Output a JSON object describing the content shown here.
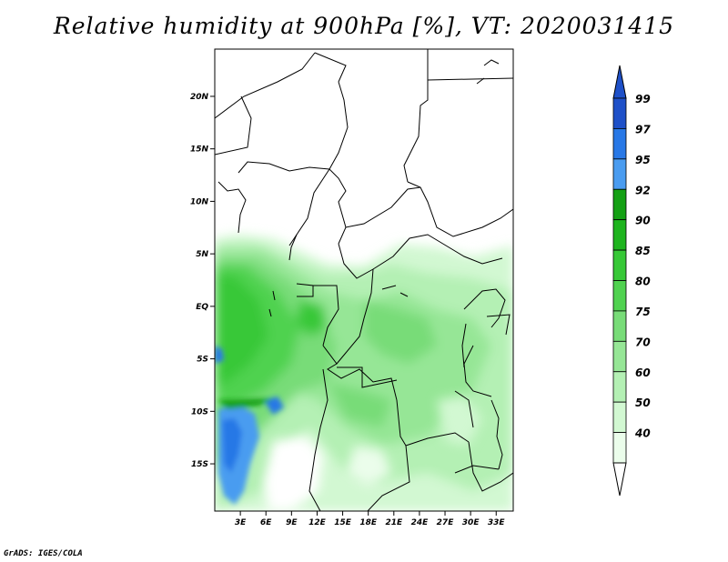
{
  "title": "Relative humidity at 900hPa [%], VT: 2020031415",
  "credit": "GrADS: IGES/COLA",
  "map": {
    "y_ticks": [
      {
        "label": "20N",
        "lat": 20
      },
      {
        "label": "15N",
        "lat": 15
      },
      {
        "label": "10N",
        "lat": 10
      },
      {
        "label": "5N",
        "lat": 5
      },
      {
        "label": "EQ",
        "lat": 0
      },
      {
        "label": "5S",
        "lat": -5
      },
      {
        "label": "10S",
        "lat": -10
      },
      {
        "label": "15S",
        "lat": -15
      }
    ],
    "x_ticks": [
      {
        "label": "3E",
        "lon": 3
      },
      {
        "label": "6E",
        "lon": 6
      },
      {
        "label": "9E",
        "lon": 9
      },
      {
        "label": "12E",
        "lon": 12
      },
      {
        "label": "15E",
        "lon": 15
      },
      {
        "label": "18E",
        "lon": 18
      },
      {
        "label": "21E",
        "lon": 21
      },
      {
        "label": "24E",
        "lon": 24
      },
      {
        "label": "27E",
        "lon": 27
      },
      {
        "label": "30E",
        "lon": 30
      },
      {
        "label": "33E",
        "lon": 33
      }
    ],
    "lon_range": [
      0,
      35
    ],
    "lat_range": [
      -19.5,
      24.5
    ]
  },
  "colorbar": {
    "levels": [
      "99",
      "97",
      "95",
      "92",
      "90",
      "85",
      "80",
      "75",
      "70",
      "60",
      "50",
      "40"
    ],
    "colors": [
      "#1e50c8",
      "#2878e6",
      "#4a9cf0",
      "#14a014",
      "#1eb41e",
      "#37c837",
      "#50d250",
      "#78dc78",
      "#96e696",
      "#b4f0b4",
      "#d2f8d2",
      "#ebfdeb"
    ],
    "top_arrow_color": "#1e50c8",
    "bottom_arrow_color": "#ffffff"
  }
}
